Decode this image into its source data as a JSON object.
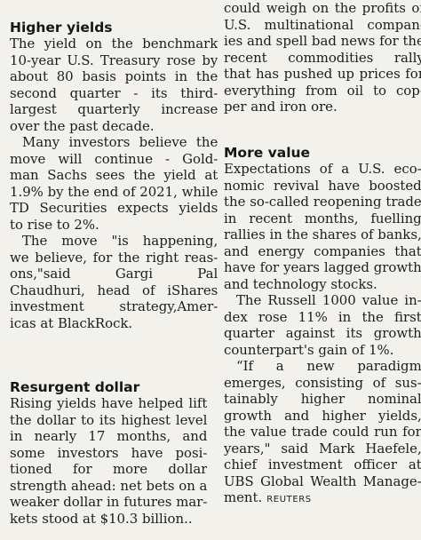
{
  "left": {
    "section1": {
      "heading": "Higher yields",
      "paragraphs": [
        {
          "lines": [
            "The yield on the benchmark",
            "10-year U.S. Treasury rose by",
            "about 80 basis points in the",
            "second quarter - its third-",
            "largest quarterly increase",
            "over the past decade."
          ]
        },
        {
          "lines": [
            "Many investors believe the",
            "move will continue - Gold-",
            "man Sachs sees the yield at",
            "1.9% by the end of 2021, while",
            "TD Securities expects yields",
            "to rise to 2%."
          ]
        },
        {
          "lines": [
            "The move \"is happening,",
            "we believe, for the right reas-",
            "ons,\"said Gargi Pal",
            "Chaudhuri, head of iShares",
            "investment strategy,Amer-",
            "icas at BlackRock."
          ]
        }
      ]
    },
    "section2": {
      "heading": "Resurgent dollar",
      "lines": [
        "Rising yields have helped lift",
        "the dollar to its highest level",
        "in nearly 17 months, and",
        "some investors have posi-",
        "tioned for more dollar",
        "strength ahead: net bets on a",
        "weaker dollar in futures mar-",
        "kets stood at $10.3 billion.."
      ]
    }
  },
  "right": {
    "intro_lines": [
      "could weigh on the profits of",
      "U.S. multinational compan-",
      "ies and spell bad news for the",
      "recent commodities rally",
      "that has pushed up prices for",
      "everything from oil to cop-",
      "per and iron ore."
    ],
    "section": {
      "heading": "More value",
      "paragraphs": [
        {
          "lines": [
            "Expectations of a U.S. eco-",
            "nomic revival have boosted",
            "the so-called reopening trade",
            "in recent months, fuelling",
            "rallies in the shares of banks,",
            "and energy companies that",
            "have for years lagged growth",
            "and technology stocks."
          ]
        },
        {
          "lines": [
            "The Russell 1000 value in-",
            "dex rose 11% in the first",
            "quarter against its growth",
            "counterpart's gain of 1%."
          ]
        },
        {
          "lines": [
            "“If a new paradigm",
            "emerges, consisting of sus-",
            "tainably higher nominal",
            "growth and higher yields,",
            "the value trade could run for",
            "years,\" said Mark Haefele,",
            "chief investment officer at",
            "UBS Global Wealth Manage-",
            "ment."
          ]
        }
      ],
      "credit": "REUTERS"
    }
  }
}
